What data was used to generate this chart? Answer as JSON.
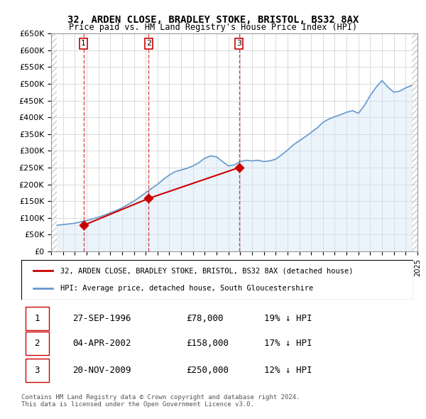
{
  "title1": "32, ARDEN CLOSE, BRADLEY STOKE, BRISTOL, BS32 8AX",
  "title2": "Price paid vs. HM Land Registry's House Price Index (HPI)",
  "ylabel_ticks": [
    "£0",
    "£50K",
    "£100K",
    "£150K",
    "£200K",
    "£250K",
    "£300K",
    "£350K",
    "£400K",
    "£450K",
    "£500K",
    "£550K",
    "£600K",
    "£650K"
  ],
  "ytick_values": [
    0,
    50000,
    100000,
    150000,
    200000,
    250000,
    300000,
    350000,
    400000,
    450000,
    500000,
    550000,
    600000,
    650000
  ],
  "hpi_years": [
    1994.5,
    1995.0,
    1995.5,
    1996.0,
    1996.5,
    1997.0,
    1997.5,
    1998.0,
    1998.5,
    1999.0,
    1999.5,
    2000.0,
    2000.5,
    2001.0,
    2001.5,
    2002.0,
    2002.5,
    2003.0,
    2003.5,
    2004.0,
    2004.5,
    2005.0,
    2005.5,
    2006.0,
    2006.5,
    2007.0,
    2007.5,
    2008.0,
    2008.5,
    2009.0,
    2009.5,
    2010.0,
    2010.5,
    2011.0,
    2011.5,
    2012.0,
    2012.5,
    2013.0,
    2013.5,
    2014.0,
    2014.5,
    2015.0,
    2015.5,
    2016.0,
    2016.5,
    2017.0,
    2017.5,
    2018.0,
    2018.5,
    2019.0,
    2019.5,
    2020.0,
    2020.5,
    2021.0,
    2021.5,
    2022.0,
    2022.5,
    2023.0,
    2023.5,
    2024.0,
    2024.5
  ],
  "hpi_values": [
    78000,
    80000,
    82000,
    84000,
    88000,
    92000,
    97000,
    102000,
    108000,
    115000,
    122000,
    130000,
    140000,
    150000,
    162000,
    175000,
    188000,
    200000,
    215000,
    228000,
    238000,
    243000,
    248000,
    255000,
    265000,
    278000,
    285000,
    282000,
    268000,
    255000,
    258000,
    268000,
    272000,
    270000,
    272000,
    268000,
    270000,
    275000,
    288000,
    302000,
    318000,
    330000,
    342000,
    355000,
    368000,
    385000,
    395000,
    402000,
    408000,
    415000,
    420000,
    412000,
    435000,
    465000,
    490000,
    510000,
    490000,
    475000,
    478000,
    488000,
    495000
  ],
  "sale_years": [
    1996.75,
    2002.25,
    2009.9
  ],
  "sale_prices": [
    78000,
    158000,
    250000
  ],
  "sale_labels": [
    "1",
    "2",
    "3"
  ],
  "price_color": "#cc0000",
  "hpi_color": "#6699cc",
  "hpi_fill_color": "#d0e4f7",
  "sale_marker_color": "#cc0000",
  "legend_label_price": "32, ARDEN CLOSE, BRADLEY STOKE, BRISTOL, BS32 8AX (detached house)",
  "legend_label_hpi": "HPI: Average price, detached house, South Gloucestershire",
  "table_rows": [
    {
      "num": "1",
      "date": "27-SEP-1996",
      "price": "£78,000",
      "hpi": "19% ↓ HPI"
    },
    {
      "num": "2",
      "date": "04-APR-2002",
      "price": "£158,000",
      "hpi": "17% ↓ HPI"
    },
    {
      "num": "3",
      "date": "20-NOV-2009",
      "price": "£250,000",
      "hpi": "12% ↓ HPI"
    }
  ],
  "footer": "Contains HM Land Registry data © Crown copyright and database right 2024.\nThis data is licensed under the Open Government Licence v3.0.",
  "xmin": 1994,
  "xmax": 2025,
  "ymin": 0,
  "ymax": 650000,
  "hatch_color": "#cccccc",
  "grid_color": "#cccccc",
  "background_hatch": "#f0f0f0"
}
